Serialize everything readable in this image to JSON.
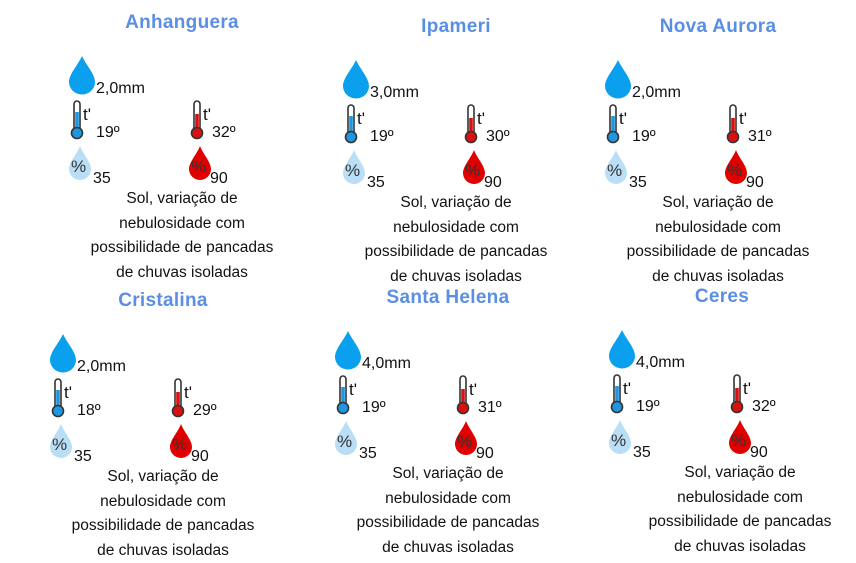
{
  "colors": {
    "title": "#5a8fe3",
    "rain_drop": "#0aa0ee",
    "humidity_low": "#b9def5",
    "humidity_high": "#e00000",
    "thermo_min": "#1e96e0",
    "thermo_max": "#d81010"
  },
  "icons": {
    "rain": "water-drop-icon",
    "temp_min": "thermometer-cold-icon",
    "temp_max": "thermometer-hot-icon",
    "humidity_min": "humidity-drop-light-icon",
    "humidity_max": "humidity-drop-red-icon"
  },
  "temp_symbol": "t'",
  "percent_symbol": "%",
  "cities": [
    {
      "name": "Anhanguera",
      "rain": "2,0mm",
      "temp_min": "19º",
      "temp_max": "32º",
      "humidity_min": "35",
      "humidity_max": "90",
      "description": [
        "Sol, variação de",
        "nebulosidade com",
        "possibilidade de pancadas",
        "de chuvas isoladas"
      ]
    },
    {
      "name": "Ipameri",
      "rain": "3,0mm",
      "temp_min": "19º",
      "temp_max": "30º",
      "humidity_min": "35",
      "humidity_max": "90",
      "description": [
        "Sol, variação de",
        "nebulosidade com",
        "possibilidade de pancadas",
        "de chuvas isoladas"
      ]
    },
    {
      "name": "Nova Aurora",
      "rain": "2,0mm",
      "temp_min": "19º",
      "temp_max": "31º",
      "humidity_min": "35",
      "humidity_max": "90",
      "description": [
        "Sol, variação de",
        "nebulosidade com",
        "possibilidade de pancadas",
        "de chuvas isoladas"
      ]
    },
    {
      "name": "Cristalina",
      "rain": "2,0mm",
      "temp_min": "18º",
      "temp_max": "29º",
      "humidity_min": "35",
      "humidity_max": "90",
      "description": [
        "Sol, variação de",
        "nebulosidade com",
        "possibilidade de pancadas",
        "de chuvas isoladas"
      ]
    },
    {
      "name": "Santa Helena",
      "rain": "4,0mm",
      "temp_min": "19º",
      "temp_max": "31º",
      "humidity_min": "35",
      "humidity_max": "90",
      "description": [
        "Sol, variação de",
        "nebulosidade com",
        "possibilidade de pancadas",
        "de chuvas isoladas"
      ]
    },
    {
      "name": "Ceres",
      "rain": "4,0mm",
      "temp_min": "19º",
      "temp_max": "32º",
      "humidity_min": "35",
      "humidity_max": "90",
      "description": [
        "Sol, variação de",
        "nebulosidade com",
        "possibilidade de pancadas",
        "de chuvas isoladas"
      ]
    }
  ]
}
